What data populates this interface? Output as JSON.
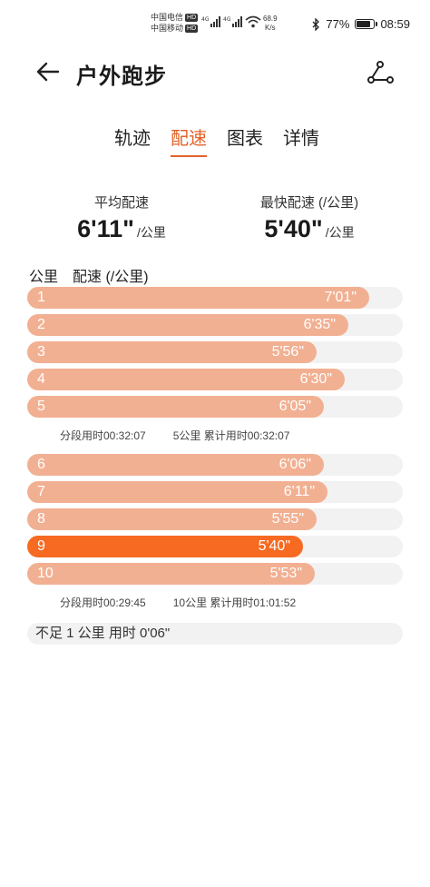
{
  "status": {
    "carrier1": "中国电信",
    "carrier2": "中国移动",
    "hd": "HD",
    "net_speed": "68.9",
    "net_unit": "K/s",
    "battery": "77%",
    "time": "08:59"
  },
  "header": {
    "title": "户外跑步"
  },
  "tabs": [
    "轨迹",
    "配速",
    "图表",
    "详情"
  ],
  "active_tab": 1,
  "summary": {
    "avg_label": "平均配速",
    "avg_value": "6'11\"",
    "avg_unit": "/公里",
    "fast_label": "最快配速 (/公里)",
    "fast_value": "5'40\"",
    "fast_unit": "/公里"
  },
  "list": {
    "col_km": "公里",
    "col_pace": "配速 (/公里)",
    "rows": [
      {
        "km": "1",
        "pace": "7'01\"",
        "fill": 0.91,
        "fastest": false
      },
      {
        "km": "2",
        "pace": "6'35\"",
        "fill": 0.855,
        "fastest": false
      },
      {
        "km": "3",
        "pace": "5'56\"",
        "fill": 0.77,
        "fastest": false
      },
      {
        "km": "4",
        "pace": "6'30\"",
        "fill": 0.845,
        "fastest": false
      },
      {
        "km": "5",
        "pace": "6'05\"",
        "fill": 0.79,
        "fastest": false
      },
      {
        "km": "6",
        "pace": "6'06\"",
        "fill": 0.79,
        "fastest": false
      },
      {
        "km": "7",
        "pace": "6'11\"",
        "fill": 0.8,
        "fastest": false
      },
      {
        "km": "8",
        "pace": "5'55\"",
        "fill": 0.77,
        "fastest": false
      },
      {
        "km": "9",
        "pace": "5'40\"",
        "fill": 0.735,
        "fastest": true
      },
      {
        "km": "10",
        "pace": "5'53\"",
        "fill": 0.765,
        "fastest": false
      }
    ],
    "splits": [
      {
        "segment": "分段用时00:32:07",
        "cumulative": "5公里 累计用时00:32:07"
      },
      {
        "segment": "分段用时00:29:45",
        "cumulative": "10公里 累计用时01:01:52"
      }
    ],
    "remainder": "不足 1 公里 用时 0'06\""
  },
  "colors": {
    "accent": "#e2632b",
    "bar": "#f2b092",
    "bar_fastest": "#f66a22",
    "track": "#f2f2f2"
  }
}
